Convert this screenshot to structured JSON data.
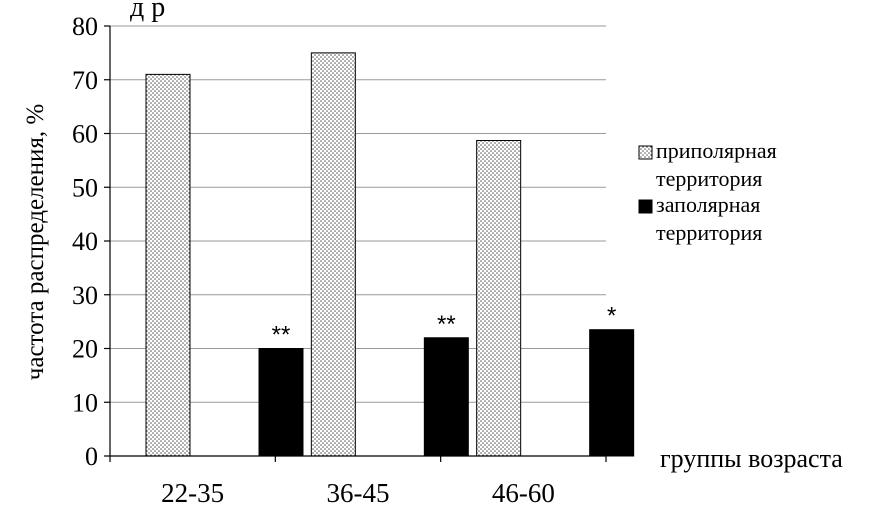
{
  "chart_data": {
    "type": "bar",
    "categories": [
      "22-35",
      "36-45",
      "46-60"
    ],
    "series": [
      {
        "name": "приполярная территория",
        "name_lines": [
          "приполярная",
          "территория"
        ],
        "values": [
          71,
          75,
          58.7
        ],
        "pattern": "dots"
      },
      {
        "name": "заполярная территория",
        "name_lines": [
          "заполярная",
          "территория"
        ],
        "values": [
          20,
          22,
          23.5
        ],
        "pattern": "solid"
      }
    ],
    "annotations": [
      "**",
      "**",
      "*"
    ],
    "ylabel": "частота распределения, %",
    "xlabel": "группы возраста",
    "ylim": [
      0,
      80
    ],
    "yticks": [
      "0",
      "10",
      "20",
      "30",
      "40",
      "50",
      "60",
      "70",
      "80"
    ],
    "grid": true,
    "legend_position": "right",
    "header_fragment": "д р"
  }
}
